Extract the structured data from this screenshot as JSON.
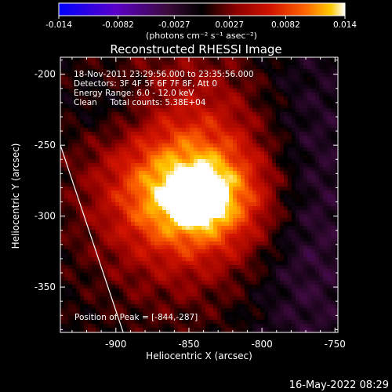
{
  "chart_data": {
    "type": "heatmap",
    "title": "Reconstructed RHESSI Image",
    "xlabel": "Heliocentric X (arcsec)",
    "ylabel": "Heliocentric Y (arcsec)",
    "xlim": [
      -938,
      -748
    ],
    "ylim": [
      -382,
      -188
    ],
    "x_ticks": [
      -900,
      -850,
      -800,
      -750
    ],
    "x_tick_labels": [
      "-900",
      "-850",
      "-800",
      "-750"
    ],
    "y_ticks": [
      -200,
      -250,
      -300,
      -350
    ],
    "y_tick_labels": [
      "-200",
      "-250",
      "-300",
      "-350"
    ],
    "colorbar": {
      "range": [
        -0.014,
        0.014
      ],
      "ticks": [
        -0.014,
        -0.0082,
        -0.0027,
        0.0027,
        0.0082,
        0.014
      ],
      "tick_labels": [
        "-0.014",
        "-0.0082",
        "-0.0027",
        "0.0027",
        "0.0082",
        "0.014"
      ],
      "units_label": "(photons cm⁻² s⁻¹ asec⁻²)",
      "colors": [
        "#0000ff",
        "#5a00c8",
        "#3c0a3c",
        "#000000",
        "#8c0000",
        "#d21400",
        "#ff6400",
        "#ffc800",
        "#ffffff"
      ]
    },
    "annotations": [
      "18-Nov-2011 23:29:56.000 to 23:35:56.000",
      "Detectors: 3F 4F 5F 6F 7F 8F, Att 0",
      "Energy Range: 6.0 - 12.0 keV",
      "Clean     Total counts: 5.38E+04"
    ],
    "peak_label": "Position of Peak = [-844,-287]",
    "peak": [
      -844,
      -287
    ],
    "limb_line": [
      [
        -938,
        -250
      ],
      [
        -895,
        -382
      ]
    ],
    "grid": false
  },
  "footer_timestamp": "16-May-2022 08:29"
}
